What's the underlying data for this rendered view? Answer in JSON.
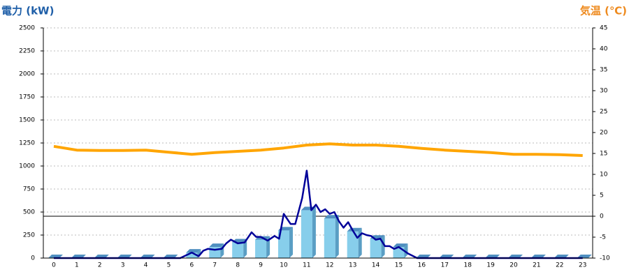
{
  "chart_data": {
    "type": "combo",
    "y_label": "電力 (kW)",
    "y2_label": "気温 (℃)",
    "categories": [
      "0",
      "1",
      "2",
      "3",
      "4",
      "5",
      "6",
      "7",
      "8",
      "9",
      "10",
      "11",
      "12",
      "13",
      "14",
      "15",
      "16",
      "17",
      "18",
      "19",
      "20",
      "21",
      "22",
      "23"
    ],
    "ylim": [
      0,
      2500
    ],
    "yticks": [
      0,
      250,
      500,
      750,
      1000,
      1250,
      1500,
      1750,
      2000,
      2250,
      2500
    ],
    "y2lim": [
      -10,
      45
    ],
    "y2ticks": [
      -10,
      -5,
      0,
      5,
      10,
      15,
      20,
      25,
      30,
      35,
      40,
      45
    ],
    "grid": true,
    "series": [
      {
        "type": "bar",
        "color": "#87ceeb",
        "values": [
          0,
          0,
          0,
          0,
          0,
          0,
          60,
          120,
          170,
          200,
          300,
          520,
          430,
          290,
          210,
          120,
          0,
          0,
          0,
          0,
          0,
          0,
          0,
          0
        ]
      },
      {
        "type": "line",
        "color": "#000099",
        "x": [
          0,
          5.5,
          6,
          6.3,
          6.5,
          6.7,
          7,
          7.3,
          7.5,
          7.7,
          8,
          8.3,
          8.6,
          8.8,
          9,
          9.3,
          9.6,
          9.8,
          10,
          10.3,
          10.5,
          10.8,
          11,
          11.2,
          11.4,
          11.6,
          11.8,
          12,
          12.2,
          12.4,
          12.6,
          12.8,
          13,
          13.2,
          13.4,
          13.6,
          13.8,
          14,
          14.2,
          14.4,
          14.6,
          14.8,
          15,
          15.4,
          15.8,
          23
        ],
        "values": [
          0,
          0,
          60,
          20,
          80,
          100,
          90,
          100,
          160,
          200,
          160,
          170,
          280,
          230,
          230,
          190,
          240,
          210,
          480,
          370,
          370,
          650,
          950,
          520,
          580,
          500,
          530,
          480,
          500,
          400,
          330,
          390,
          300,
          220,
          270,
          250,
          240,
          200,
          210,
          130,
          130,
          100,
          120,
          50,
          0,
          0
        ]
      },
      {
        "type": "line",
        "axis": "y2",
        "color": "#ffa500",
        "values": [
          16.7,
          15.8,
          15.7,
          15.7,
          15.8,
          15.3,
          14.8,
          15.2,
          15.5,
          15.8,
          16.3,
          17,
          17.3,
          17,
          17,
          16.7,
          16.2,
          15.8,
          15.5,
          15.2,
          14.8,
          14.8,
          14.7,
          14.5
        ]
      }
    ]
  }
}
